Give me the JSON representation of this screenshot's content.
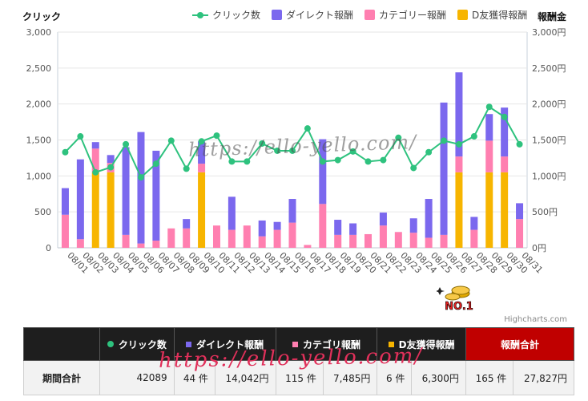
{
  "axes": {
    "left_title": "クリック",
    "right_title": "報酬金"
  },
  "legend": [
    {
      "label": "クリック数",
      "color": "#2ec27e",
      "kind": "line"
    },
    {
      "label": "ダイレクト報酬",
      "color": "#7b68ee",
      "kind": "bar"
    },
    {
      "label": "カテゴリー報酬",
      "color": "#ff7fb0",
      "kind": "bar"
    },
    {
      "label": "D友獲得報酬",
      "color": "#f7b500",
      "kind": "bar"
    }
  ],
  "credits": "Highcharts.com",
  "watermark": "https://ello-yello.com/",
  "chart_data": {
    "type": "bar",
    "stacked": true,
    "categories": [
      "08/01",
      "08/02",
      "08/03",
      "08/04",
      "08/05",
      "08/06",
      "08/07",
      "08/08",
      "08/09",
      "08/10",
      "08/11",
      "08/12",
      "08/13",
      "08/14",
      "08/15",
      "08/16",
      "08/17",
      "08/18",
      "08/19",
      "08/20",
      "08/21",
      "08/22",
      "08/23",
      "08/24",
      "08/25",
      "08/26",
      "08/27",
      "08/28",
      "08/29",
      "08/30",
      "08/31"
    ],
    "y_left": {
      "title": "クリック",
      "range": [
        0,
        3000
      ],
      "ticks": [
        "0",
        "500",
        "1,000",
        "1,500",
        "2,000",
        "2,500",
        "3,000"
      ]
    },
    "y_right": {
      "title": "報酬金",
      "range": [
        0,
        3000
      ],
      "ticks": [
        "0円",
        "500円",
        "1,000円",
        "1,500円",
        "2,000円",
        "2,500円",
        "3,000円"
      ]
    },
    "grid": true,
    "legend_position": "top-right",
    "series": [
      {
        "name": "D友獲得報酬",
        "color": "#f7b500",
        "axis": "right",
        "values": [
          0,
          0,
          1050,
          1050,
          0,
          0,
          0,
          0,
          0,
          1050,
          0,
          0,
          0,
          0,
          0,
          0,
          0,
          0,
          0,
          0,
          0,
          0,
          0,
          0,
          0,
          0,
          1050,
          0,
          1050,
          1050,
          0
        ]
      },
      {
        "name": "カテゴリー報酬",
        "color": "#ff7fb0",
        "axis": "right",
        "values": [
          460,
          120,
          330,
          130,
          180,
          60,
          100,
          270,
          270,
          120,
          310,
          250,
          310,
          160,
          250,
          350,
          40,
          610,
          180,
          180,
          190,
          310,
          220,
          210,
          140,
          180,
          220,
          250,
          440,
          220,
          400
        ]
      },
      {
        "name": "ダイレクト報酬",
        "color": "#7b68ee",
        "axis": "right",
        "values": [
          370,
          1110,
          90,
          110,
          1220,
          1550,
          1250,
          0,
          130,
          310,
          0,
          460,
          0,
          220,
          110,
          330,
          0,
          900,
          210,
          160,
          0,
          180,
          0,
          200,
          540,
          1840,
          1170,
          180,
          370,
          680,
          220
        ]
      },
      {
        "name": "クリック数",
        "color": "#2ec27e",
        "axis": "left",
        "kind": "line",
        "values": [
          1330,
          1550,
          1050,
          1120,
          1440,
          980,
          1170,
          1490,
          1100,
          1480,
          1560,
          1200,
          1200,
          1450,
          1350,
          1350,
          1660,
          1200,
          1220,
          1340,
          1200,
          1220,
          1530,
          1110,
          1330,
          1490,
          1440,
          1550,
          1960,
          1820,
          1440
        ]
      }
    ]
  },
  "table": {
    "headers": [
      {
        "label": "クリック数",
        "marker_color": "#2ec27e",
        "marker": "dot"
      },
      {
        "label": "ダイレクト報酬",
        "marker_color": "#7b68ee",
        "marker": "square"
      },
      {
        "label": "カテゴリ報酬",
        "marker_color": "#ff7fb0",
        "marker": "square"
      },
      {
        "label": "D友獲得報酬",
        "marker_color": "#f7b500",
        "marker": "square"
      },
      {
        "label": "報酬合計",
        "marker_color": "",
        "marker": ""
      }
    ],
    "row": {
      "label": "期間合計",
      "clicks": "42089",
      "direct_count": "44 件",
      "direct_amount": "14,042円",
      "category_count": "115 件",
      "category_amount": "7,485円",
      "dfriend_count": "6 件",
      "dfriend_amount": "6,300円",
      "total_count": "165 件",
      "total_amount": "27,827円"
    }
  }
}
